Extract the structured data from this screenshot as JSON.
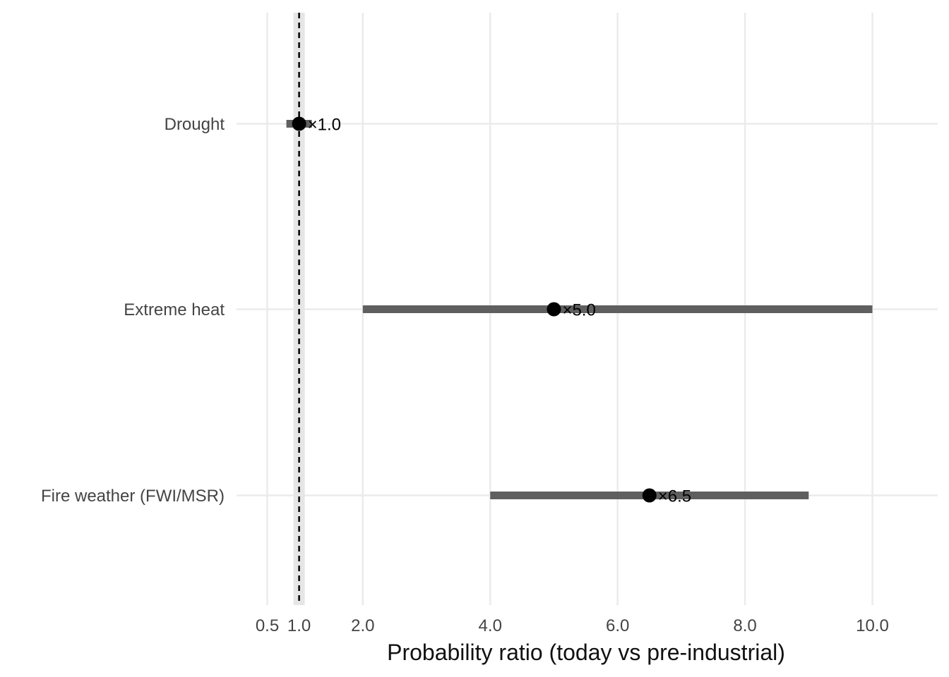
{
  "chart_data": {
    "type": "scatter",
    "title": "",
    "xlabel": "Probability ratio (today vs pre-industrial)",
    "ylabel": "",
    "xlim": [
      0.0,
      11.0
    ],
    "grid": true,
    "legend": "none",
    "x_ticks": [
      {
        "value": 0.5,
        "label": "0.5"
      },
      {
        "value": 1.0,
        "label": "1.0"
      },
      {
        "value": 2.0,
        "label": "2.0"
      },
      {
        "value": 4.0,
        "label": "4.0"
      },
      {
        "value": 6.0,
        "label": "6.0"
      },
      {
        "value": 8.0,
        "label": "8.0"
      },
      {
        "value": 10.0,
        "label": "10.0"
      }
    ],
    "reference_line": {
      "x": 1.0,
      "style": "dashed"
    },
    "categories": [
      "Drought",
      "Extreme heat",
      "Fire weather (FWI/MSR)"
    ],
    "points": [
      {
        "category": "Drought",
        "estimate": 1.0,
        "low": 0.8,
        "high": 1.2,
        "label": "×1.0"
      },
      {
        "category": "Extreme heat",
        "estimate": 5.0,
        "low": 2.0,
        "high": 10.0,
        "label": "×5.0"
      },
      {
        "category": "Fire weather (FWI/MSR)",
        "estimate": 6.5,
        "low": 4.0,
        "high": 9.0,
        "label": "×6.5"
      }
    ],
    "colors": {
      "interval": "#5f5f5f",
      "point": "#000000",
      "grid": "#ebebeb",
      "reference_band": "#e6e6e6"
    }
  }
}
